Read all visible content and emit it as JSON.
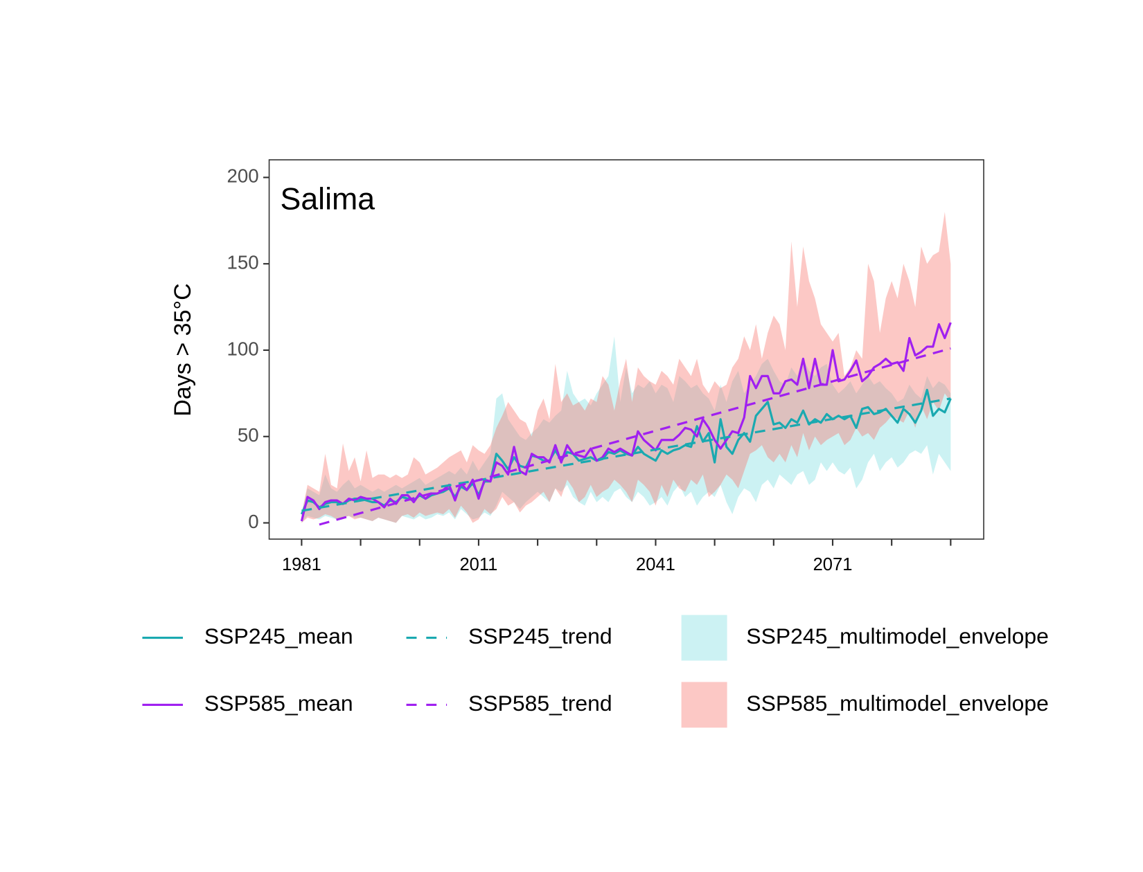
{
  "chart_data": {
    "type": "line",
    "annotation": "Salima",
    "y_label": "Days > 35°C",
    "xlim": [
      1975.5,
      2096.6
    ],
    "ylim": [
      -9.4,
      210.2
    ],
    "xticks": [
      1981,
      2011,
      2041,
      2071
    ],
    "xminor_ticks": [
      1991,
      2001,
      2021,
      2031,
      2051,
      2061,
      2081,
      2091
    ],
    "yticks": [
      0,
      50,
      100,
      150,
      200
    ],
    "grid": false,
    "legend": "bottom",
    "x": [
      1981,
      1982,
      1983,
      1984,
      1985,
      1986,
      1987,
      1988,
      1989,
      1990,
      1991,
      1992,
      1993,
      1994,
      1995,
      1996,
      1997,
      1998,
      1999,
      2000,
      2001,
      2002,
      2003,
      2004,
      2005,
      2006,
      2007,
      2008,
      2009,
      2010,
      2011,
      2012,
      2013,
      2014,
      2015,
      2016,
      2017,
      2018,
      2019,
      2020,
      2021,
      2022,
      2023,
      2024,
      2025,
      2026,
      2027,
      2028,
      2029,
      2030,
      2031,
      2032,
      2033,
      2034,
      2035,
      2036,
      2037,
      2038,
      2039,
      2040,
      2041,
      2042,
      2043,
      2044,
      2045,
      2046,
      2047,
      2048,
      2049,
      2050,
      2051,
      2052,
      2053,
      2054,
      2055,
      2056,
      2057,
      2058,
      2059,
      2060,
      2061,
      2062,
      2063,
      2064,
      2065,
      2066,
      2067,
      2068,
      2069,
      2070,
      2071,
      2072,
      2073,
      2074,
      2075,
      2076,
      2077,
      2078,
      2079,
      2080,
      2081,
      2082,
      2083,
      2084,
      2085,
      2086,
      2087,
      2088,
      2089,
      2090,
      2091
    ],
    "envelopes": [
      {
        "name": "SSP245_multimodel_envelope",
        "color": "#00bfc4",
        "opacity": 0.2,
        "low": [
          0,
          4,
          3,
          2,
          4,
          3,
          2,
          3,
          4,
          3,
          3,
          2,
          1,
          3,
          2,
          1,
          0,
          4,
          3,
          2,
          4,
          2,
          3,
          5,
          4,
          6,
          2,
          8,
          5,
          2,
          3,
          6,
          4,
          10,
          18,
          15,
          12,
          8,
          12,
          15,
          18,
          15,
          12,
          20,
          18,
          22,
          15,
          12,
          10,
          18,
          12,
          15,
          12,
          18,
          20,
          15,
          12,
          18,
          15,
          10,
          12,
          15,
          10,
          18,
          22,
          15,
          18,
          10,
          15,
          18,
          15,
          22,
          12,
          5,
          15,
          20,
          18,
          12,
          22,
          25,
          20,
          28,
          25,
          22,
          28,
          30,
          22,
          25,
          35,
          30,
          35,
          30,
          28,
          32,
          20,
          25,
          35,
          40,
          30,
          35,
          38,
          32,
          35,
          40,
          42,
          40,
          45,
          28,
          40,
          35,
          30
        ],
        "high": [
          6,
          20,
          18,
          16,
          28,
          20,
          18,
          22,
          25,
          20,
          22,
          20,
          18,
          20,
          18,
          20,
          22,
          20,
          22,
          24,
          26,
          22,
          24,
          26,
          28,
          30,
          28,
          32,
          28,
          36,
          30,
          35,
          40,
          72,
          75,
          60,
          55,
          50,
          48,
          52,
          55,
          60,
          58,
          62,
          65,
          88,
          75,
          70,
          72,
          68,
          75,
          80,
          85,
          108,
          70,
          90,
          75,
          80,
          78,
          82,
          75,
          80,
          78,
          70,
          85,
          82,
          78,
          80,
          75,
          72,
          65,
          80,
          70,
          82,
          88,
          75,
          80,
          85,
          92,
          95,
          88,
          82,
          80,
          90,
          85,
          95,
          88,
          85,
          90,
          92,
          80,
          75,
          78,
          82,
          75,
          80,
          85,
          80,
          82,
          78,
          75,
          70,
          72,
          80,
          75,
          72,
          85,
          78,
          82,
          80,
          75
        ]
      },
      {
        "name": "SSP585_multimodel_envelope",
        "color": "#f8766d",
        "opacity": 0.4,
        "low": [
          0,
          3,
          2,
          3,
          5,
          4,
          2,
          3,
          4,
          2,
          3,
          2,
          1,
          3,
          2,
          1,
          0,
          4,
          5,
          3,
          6,
          4,
          5,
          6,
          5,
          8,
          3,
          10,
          6,
          0,
          2,
          8,
          5,
          8,
          15,
          10,
          12,
          6,
          10,
          12,
          15,
          18,
          12,
          20,
          15,
          25,
          20,
          12,
          15,
          22,
          15,
          18,
          20,
          25,
          22,
          18,
          12,
          25,
          22,
          18,
          10,
          22,
          15,
          25,
          20,
          18,
          25,
          22,
          28,
          15,
          18,
          22,
          28,
          25,
          20,
          30,
          40,
          42,
          45,
          38,
          35,
          40,
          35,
          45,
          38,
          52,
          42,
          50,
          45,
          48,
          50,
          52,
          45,
          48,
          55,
          50,
          52,
          48,
          55,
          58,
          62,
          60,
          58,
          65,
          55,
          68,
          60,
          70,
          65,
          75,
          70
        ],
        "high": [
          5,
          22,
          20,
          18,
          40,
          22,
          20,
          46,
          30,
          38,
          24,
          42,
          26,
          28,
          28,
          26,
          28,
          26,
          28,
          38,
          35,
          28,
          30,
          32,
          35,
          38,
          40,
          42,
          35,
          45,
          42,
          40,
          45,
          55,
          62,
          70,
          65,
          60,
          58,
          50,
          65,
          72,
          60,
          92,
          70,
          75,
          68,
          70,
          65,
          72,
          70,
          85,
          80,
          65,
          82,
          95,
          70,
          90,
          85,
          82,
          80,
          88,
          85,
          80,
          95,
          90,
          85,
          95,
          80,
          75,
          82,
          78,
          80,
          90,
          95,
          108,
          100,
          115,
          95,
          110,
          120,
          115,
          100,
          163,
          125,
          160,
          140,
          130,
          115,
          110,
          105,
          110,
          85,
          90,
          100,
          95,
          150,
          140,
          110,
          130,
          140,
          130,
          150,
          140,
          125,
          160,
          150,
          155,
          157,
          180,
          150
        ]
      }
    ],
    "series": [
      {
        "name": "SSP245_mean",
        "color": "#1aa9b0",
        "values": [
          5,
          13,
          12,
          9,
          11,
          12,
          12,
          11,
          13,
          14,
          14,
          13,
          12,
          12,
          10,
          13,
          12,
          15,
          14,
          13,
          16,
          14,
          16,
          17,
          18,
          20,
          15,
          21,
          19,
          23,
          16,
          24,
          24,
          40,
          36,
          31,
          38,
          33,
          32,
          39,
          38,
          36,
          36,
          42,
          36,
          41,
          40,
          36,
          37,
          38,
          36,
          37,
          41,
          40,
          42,
          40,
          39,
          44,
          40,
          38,
          36,
          42,
          40,
          42,
          43,
          45,
          44,
          56,
          47,
          52,
          35,
          60,
          44,
          40,
          48,
          52,
          47,
          62,
          66,
          70,
          57,
          58,
          55,
          60,
          58,
          65,
          57,
          60,
          58,
          63,
          60,
          62,
          60,
          62,
          55,
          66,
          67,
          63,
          64,
          66,
          62,
          58,
          66,
          63,
          58,
          65,
          77,
          62,
          66,
          64,
          72
        ]
      },
      {
        "name": "SSP585_mean",
        "color": "#a020f0",
        "values": [
          1,
          15,
          13,
          8,
          12,
          13,
          13,
          11,
          14,
          13,
          15,
          14,
          14,
          12,
          9,
          14,
          11,
          16,
          16,
          12,
          17,
          14,
          17,
          17,
          19,
          22,
          13,
          23,
          19,
          25,
          14,
          25,
          24,
          35,
          33,
          28,
          44,
          30,
          28,
          40,
          38,
          38,
          35,
          45,
          35,
          45,
          40,
          39,
          38,
          43,
          36,
          38,
          43,
          41,
          43,
          41,
          39,
          53,
          48,
          45,
          42,
          48,
          48,
          48,
          51,
          55,
          54,
          50,
          60,
          55,
          48,
          43,
          48,
          53,
          52,
          61,
          85,
          78,
          85,
          85,
          75,
          75,
          82,
          83,
          80,
          95,
          78,
          95,
          80,
          80,
          100,
          82,
          83,
          88,
          94,
          82,
          85,
          90,
          92,
          95,
          92,
          93,
          88,
          107,
          97,
          99,
          102,
          102,
          115,
          107,
          116
        ]
      }
    ],
    "trends": [
      {
        "name": "SSP245_trend",
        "color": "#1aa9b0",
        "x": [
          1981,
          2091
        ],
        "values": [
          7,
          72
        ]
      },
      {
        "name": "SSP585_trend",
        "color": "#a020f0",
        "x": [
          1984,
          2091
        ],
        "values": [
          -1,
          101
        ]
      }
    ]
  }
}
